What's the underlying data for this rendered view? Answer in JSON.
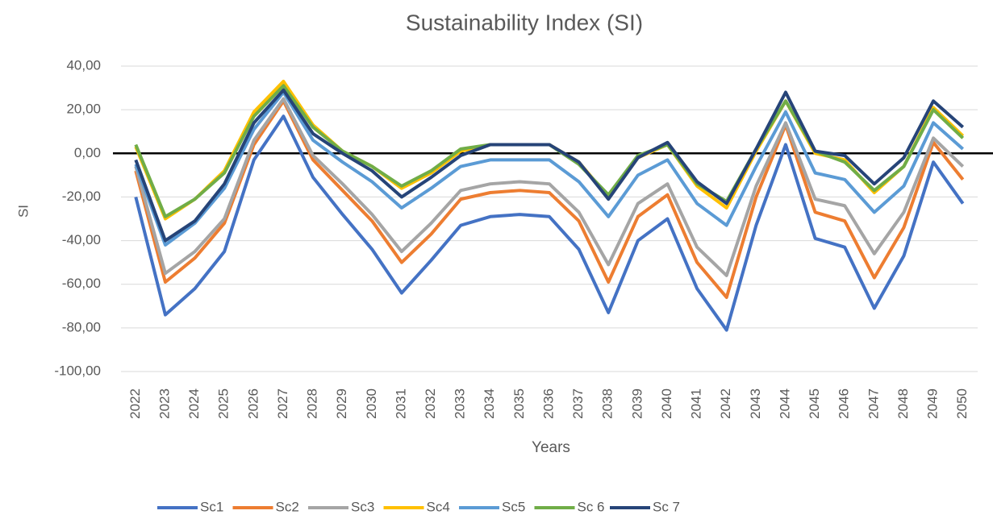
{
  "chart_data": {
    "type": "line",
    "title": "Sustainability Index (SI)",
    "x_label": "Years",
    "y_label": "SI",
    "categories": [
      "2022",
      "2023",
      "2024",
      "2025",
      "2026",
      "2027",
      "2028",
      "2029",
      "2030",
      "2031",
      "2032",
      "2033",
      "2034",
      "2035",
      "2036",
      "2037",
      "2038",
      "2039",
      "2040",
      "2041",
      "2042",
      "2043",
      "2044",
      "2045",
      "2046",
      "2047",
      "2048",
      "2049",
      "2050"
    ],
    "ylim": [
      -100,
      40
    ],
    "yticks": [
      {
        "value": -100,
        "label": "-100,00"
      },
      {
        "value": -80,
        "label": "-80,00"
      },
      {
        "value": -60,
        "label": "-60,00"
      },
      {
        "value": -40,
        "label": "-40,00"
      },
      {
        "value": -20,
        "label": "-20,00"
      },
      {
        "value": 0,
        "label": "0,00"
      },
      {
        "value": 20,
        "label": "20,00"
      },
      {
        "value": 40,
        "label": "40,00"
      }
    ],
    "grid": true,
    "legend": "bottom",
    "series": [
      {
        "name": "Sc1",
        "color": "#4472c4",
        "values": [
          -20,
          -74,
          -62,
          -45,
          -3,
          17,
          -11,
          -28,
          -44,
          -64,
          -49,
          -33,
          -29,
          -28,
          -29,
          -44,
          -73,
          -40,
          -30,
          -62,
          -81,
          -33,
          4,
          -39,
          -43,
          -71,
          -47,
          -4,
          -23
        ]
      },
      {
        "name": "Sc2",
        "color": "#ed7d31",
        "values": [
          -8,
          -59,
          -48,
          -32,
          4,
          24,
          -3,
          -17,
          -31,
          -50,
          -37,
          -21,
          -18,
          -17,
          -18,
          -31,
          -59,
          -29,
          -19,
          -50,
          -66,
          -20,
          13,
          -27,
          -31,
          -57,
          -34,
          5,
          -12
        ]
      },
      {
        "name": "Sc3",
        "color": "#a5a5a5",
        "values": [
          -6,
          -55,
          -45,
          -30,
          6,
          25,
          -1,
          -14,
          -28,
          -45,
          -32,
          -17,
          -14,
          -13,
          -14,
          -27,
          -51,
          -23,
          -14,
          -43,
          -56,
          -15,
          14,
          -21,
          -24,
          -46,
          -27,
          7,
          -6
        ]
      },
      {
        "name": "Sc4",
        "color": "#ffc000",
        "values": [
          3,
          -30,
          -21,
          -8,
          19,
          33,
          13,
          1,
          -6,
          -16,
          -9,
          1,
          4,
          4,
          4,
          -4,
          -20,
          -2,
          4,
          -15,
          -25,
          1,
          24,
          0,
          -3,
          -18,
          -6,
          21,
          8
        ]
      },
      {
        "name": "Sc5",
        "color": "#5b9bd5",
        "values": [
          -5,
          -42,
          -32,
          -16,
          11,
          28,
          6,
          -4,
          -13,
          -25,
          -16,
          -6,
          -3,
          -3,
          -3,
          -13,
          -29,
          -10,
          -3,
          -23,
          -33,
          -6,
          19,
          -9,
          -12,
          -27,
          -15,
          14,
          2
        ]
      },
      {
        "name": "Sc 6",
        "color": "#70ad47",
        "values": [
          4,
          -29,
          -21,
          -9,
          17,
          31,
          12,
          1,
          -6,
          -15,
          -8,
          2,
          4,
          4,
          4,
          -5,
          -19,
          -1,
          4,
          -14,
          -22,
          2,
          24,
          1,
          -4,
          -17,
          -6,
          20,
          7
        ]
      },
      {
        "name": "Sc 7",
        "color": "#264478",
        "values": [
          -3,
          -40,
          -31,
          -14,
          14,
          29,
          9,
          0,
          -8,
          -20,
          -11,
          -1,
          4,
          4,
          4,
          -4,
          -21,
          -2,
          5,
          -13,
          -23,
          2,
          28,
          1,
          -1,
          -14,
          -2,
          24,
          12
        ]
      }
    ]
  }
}
